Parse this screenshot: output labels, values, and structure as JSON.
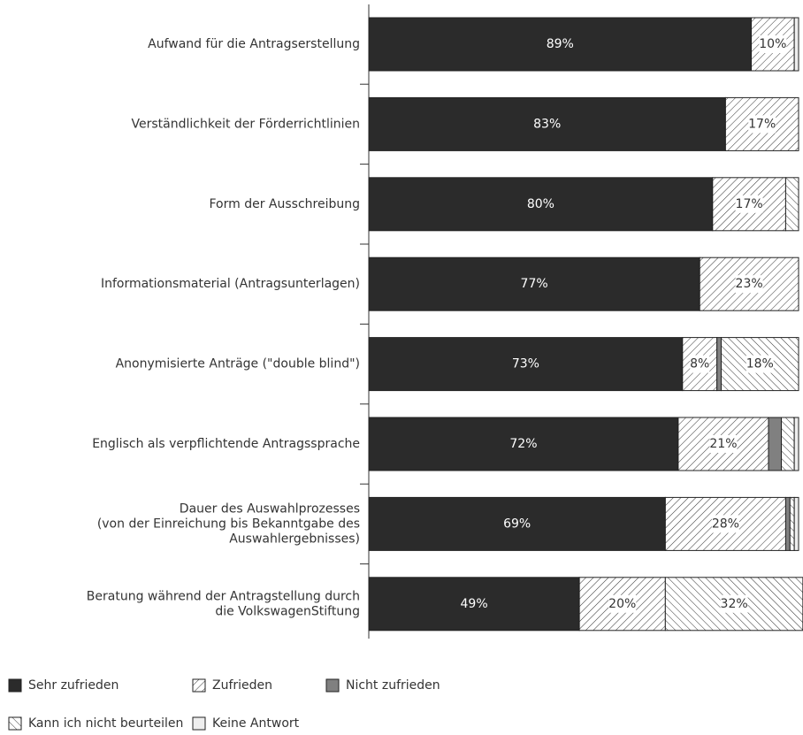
{
  "chart_data": {
    "type": "stacked-bar-horizontal",
    "categories": [
      "Aufwand für die Antragserstellung",
      "Verständlichkeit der Förderrichtlinien",
      "Form der Ausschreibung",
      "Informationsmaterial (Antragsunterlagen)",
      "Anonymisierte Anträge (\"double blind\")",
      "Englisch als verpflichtende Antragssprache",
      "Dauer des Auswahlprozesses\n(von der Einreichung bis Bekanntgabe des\nAuswahlergebnisses)",
      "Beratung während der Antragstellung durch\ndie VolkswagenStiftung"
    ],
    "xlim": [
      0,
      100
    ],
    "series": [
      {
        "name": "Sehr zufrieden",
        "color": "#2b2b2b",
        "values": [
          89,
          83,
          80,
          77,
          73,
          72,
          69,
          49
        ],
        "value_labels": [
          "89%",
          "83%",
          "80%",
          "77%",
          "73%",
          "72%",
          "69%",
          "49%"
        ]
      },
      {
        "name": "Zufrieden",
        "color": "#ffffff",
        "pattern": "forward",
        "values": [
          10,
          17,
          17,
          23,
          8,
          21,
          28,
          20
        ],
        "value_labels": [
          "10%",
          "17%",
          "17%",
          "23%",
          "8%",
          "21%",
          "28%",
          "20%"
        ]
      },
      {
        "name": "Nicht zufrieden",
        "color": "#808080",
        "values": [
          0,
          0,
          0,
          0,
          1,
          3,
          1,
          0
        ],
        "value_labels": [
          null,
          null,
          null,
          null,
          null,
          null,
          null,
          null
        ]
      },
      {
        "name": "Kann ich nicht beurteilen",
        "color": "#ffffff",
        "pattern": "backward",
        "values": [
          0,
          0,
          3,
          0,
          18,
          3,
          1,
          32
        ],
        "value_labels": [
          null,
          null,
          null,
          null,
          "18%",
          null,
          null,
          "32%"
        ]
      },
      {
        "name": "Keine Antwort",
        "color": "#eeeeee",
        "values": [
          1,
          0,
          0,
          0,
          0,
          1,
          1,
          0
        ],
        "value_labels": [
          null,
          null,
          null,
          null,
          null,
          null,
          null,
          null
        ]
      }
    ]
  }
}
